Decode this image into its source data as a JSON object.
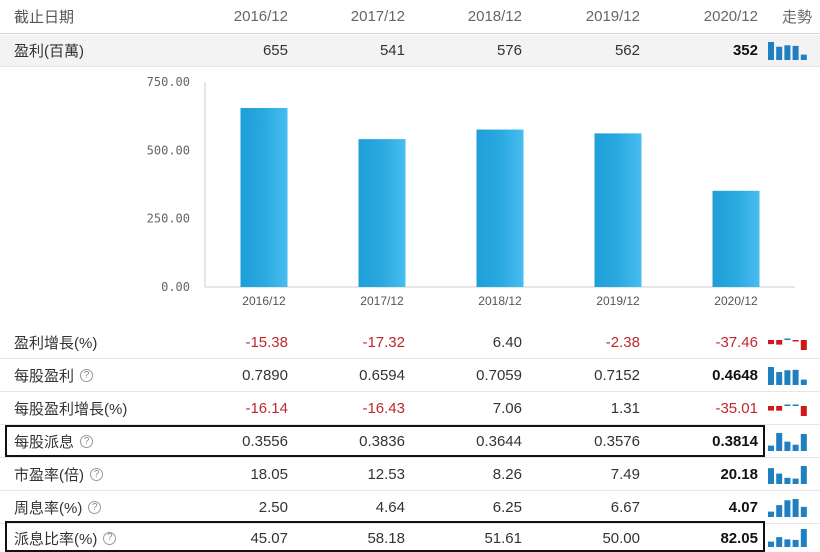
{
  "header": {
    "label": "截止日期",
    "years": [
      "2016/12",
      "2017/12",
      "2018/12",
      "2019/12",
      "2020/12"
    ],
    "trend_label": "走勢"
  },
  "colors": {
    "bar": "#2aa9e0",
    "trend_blue": "#1f7fc0",
    "trend_red": "#d0171b",
    "negative": "#c0282d"
  },
  "rows": [
    {
      "id": "profit",
      "label": "盈利(百萬)",
      "help": false,
      "values": [
        "655",
        "541",
        "576",
        "562",
        "352"
      ],
      "trend": [
        655,
        541,
        576,
        562,
        352
      ]
    },
    {
      "id": "profit_growth",
      "label": "盈利增長(%)",
      "help": false,
      "values": [
        "-15.38",
        "-17.32",
        "6.40",
        "-2.38",
        "-37.46"
      ],
      "trend": [
        -15.38,
        -17.32,
        6.4,
        -2.38,
        -37.46
      ]
    },
    {
      "id": "eps",
      "label": "每股盈利",
      "help": true,
      "values": [
        "0.7890",
        "0.6594",
        "0.7059",
        "0.7152",
        "0.4648"
      ],
      "trend": [
        0.789,
        0.6594,
        0.7059,
        0.7152,
        0.4648
      ]
    },
    {
      "id": "eps_growth",
      "label": "每股盈利增長(%)",
      "help": false,
      "values": [
        "-16.14",
        "-16.43",
        "7.06",
        "1.31",
        "-35.01"
      ],
      "trend": [
        -16.14,
        -16.43,
        7.06,
        1.31,
        -35.01
      ]
    },
    {
      "id": "dps",
      "label": "每股派息",
      "help": true,
      "values": [
        "0.3556",
        "0.3836",
        "0.3644",
        "0.3576",
        "0.3814"
      ],
      "trend": [
        0.3556,
        0.3836,
        0.3644,
        0.3576,
        0.3814
      ]
    },
    {
      "id": "pe",
      "label": "市盈率(倍)",
      "help": true,
      "values": [
        "18.05",
        "12.53",
        "8.26",
        "7.49",
        "20.18"
      ],
      "trend": [
        18.05,
        12.53,
        8.26,
        7.49,
        20.18
      ]
    },
    {
      "id": "yield",
      "label": "周息率(%)",
      "help": true,
      "values": [
        "2.50",
        "4.64",
        "6.25",
        "6.67",
        "4.07"
      ],
      "trend": [
        2.5,
        4.64,
        6.25,
        6.67,
        4.07
      ]
    },
    {
      "id": "payout",
      "label": "派息比率(%)",
      "help": true,
      "values": [
        "45.07",
        "58.18",
        "51.61",
        "50.00",
        "82.05"
      ],
      "trend": [
        45.07,
        58.18,
        51.61,
        50.0,
        82.05
      ]
    }
  ],
  "help_glyph": "?",
  "chart_data": {
    "type": "bar",
    "categories": [
      "2016/12",
      "2017/12",
      "2018/12",
      "2019/12",
      "2020/12"
    ],
    "values": [
      655,
      541,
      576,
      562,
      352
    ],
    "ylim": [
      0,
      750
    ],
    "yticks": [
      "0.00",
      "250.00",
      "500.00",
      "750.00"
    ],
    "ytick_values": [
      0,
      250,
      500,
      750
    ],
    "grid": false
  }
}
